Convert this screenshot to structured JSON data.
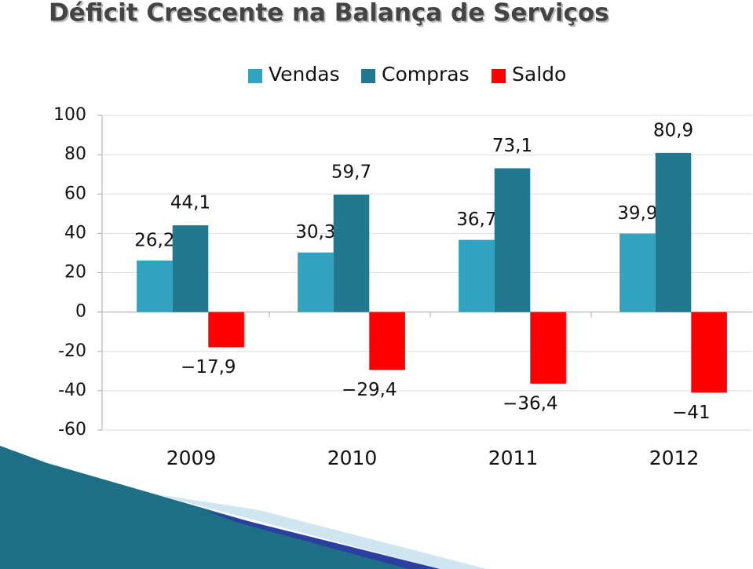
{
  "chart_data": {
    "type": "bar",
    "title": "Déficit Crescente na Balança de Serviços",
    "categories": [
      "2009",
      "2010",
      "2011",
      "2012"
    ],
    "series": [
      {
        "name": "Vendas",
        "color": "#31a3c1",
        "values": [
          26.2,
          30.3,
          36.7,
          39.9
        ],
        "value_labels": [
          "26,2",
          "30,3",
          "36,7",
          "39,9"
        ]
      },
      {
        "name": "Compras",
        "color": "#21788f",
        "values": [
          44.1,
          59.7,
          73.1,
          80.9
        ],
        "value_labels": [
          "44,1",
          "59,7",
          "73,1",
          "80,9"
        ]
      },
      {
        "name": "Saldo",
        "color": "#ff0000",
        "values": [
          -17.9,
          -29.4,
          -36.4,
          -41
        ],
        "value_labels": [
          "−17,9",
          "−29,4",
          "−36,4",
          "−41"
        ]
      }
    ],
    "ylim": [
      -60,
      100
    ],
    "yticks": [
      -60,
      -40,
      -20,
      0,
      20,
      40,
      60,
      80,
      100
    ],
    "grid": true
  }
}
